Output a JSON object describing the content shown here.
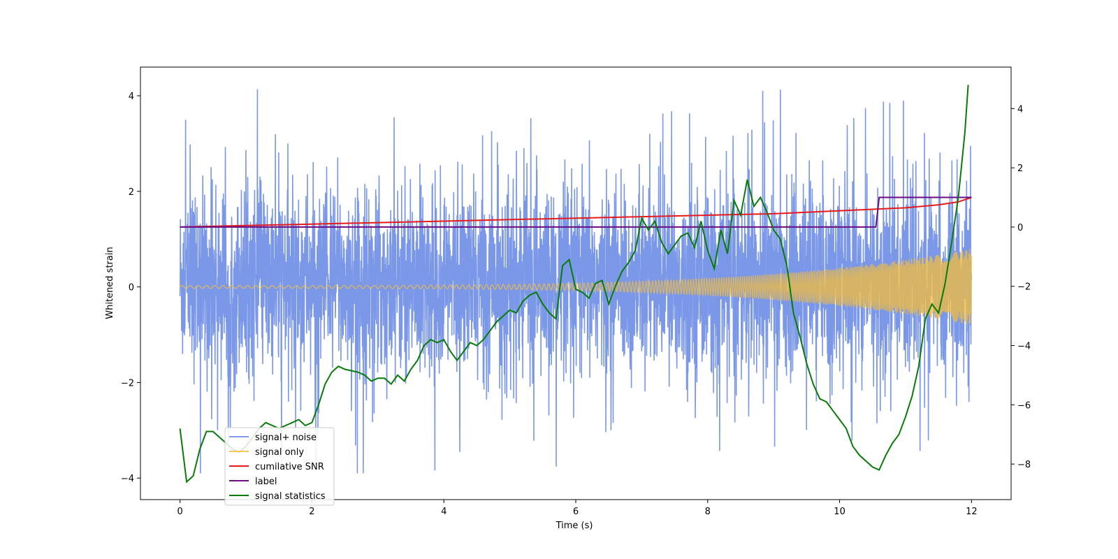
{
  "chart_data": {
    "type": "line",
    "title": "",
    "xlabel": "Time (s)",
    "ylabel": "Whitened strain",
    "y2label": "",
    "xlim": [
      -0.6,
      12.6
    ],
    "ylim": [
      -4.45,
      4.6
    ],
    "y2lim": [
      -9.2,
      5.4
    ],
    "x_ticks": [
      0,
      2,
      4,
      6,
      8,
      10,
      12
    ],
    "y_ticks": [
      -4,
      -2,
      0,
      2,
      4
    ],
    "y2_ticks": [
      -8,
      -6,
      -4,
      -2,
      0,
      2,
      4
    ],
    "grid": false,
    "legend_position": "lower-left",
    "series": [
      {
        "name": "signal+ noise",
        "axis": "left",
        "color": "#6b8ce6",
        "kind": "dense-noise",
        "x_range": [
          0,
          12
        ],
        "typical_range": [
          -2.0,
          2.2
        ],
        "extremes": [
          -3.9,
          4.2
        ]
      },
      {
        "name": "signal only",
        "axis": "left",
        "color": "#f5be3c",
        "kind": "chirp",
        "x_range": [
          0,
          12
        ],
        "amplitude_start": 0.03,
        "amplitude_end": 0.8
      },
      {
        "name": "cumilative SNR",
        "axis": "right",
        "color": "#e41a1c",
        "x": [
          0,
          1,
          2,
          3,
          4,
          5,
          6,
          7,
          8,
          9,
          10,
          10.5,
          11,
          11.5,
          11.8,
          12
        ],
        "values": [
          0.0,
          0.05,
          0.1,
          0.15,
          0.2,
          0.25,
          0.3,
          0.35,
          0.4,
          0.45,
          0.55,
          0.6,
          0.65,
          0.75,
          0.85,
          1.0
        ]
      },
      {
        "name": "label",
        "axis": "right",
        "color": "#6a0d83",
        "x": [
          0,
          10.55,
          10.6,
          12
        ],
        "values": [
          0,
          0,
          1,
          1
        ]
      },
      {
        "name": "signal statistics",
        "axis": "right",
        "color": "#0a7a0a",
        "x": [
          0,
          0.1,
          0.2,
          0.3,
          0.4,
          0.5,
          0.6,
          0.7,
          0.8,
          0.9,
          1.0,
          1.1,
          1.2,
          1.3,
          1.4,
          1.5,
          1.6,
          1.7,
          1.8,
          1.9,
          2.0,
          2.1,
          2.2,
          2.3,
          2.4,
          2.5,
          2.6,
          2.7,
          2.8,
          2.9,
          3.0,
          3.1,
          3.2,
          3.3,
          3.4,
          3.5,
          3.6,
          3.7,
          3.8,
          3.9,
          4.0,
          4.1,
          4.2,
          4.3,
          4.4,
          4.5,
          4.6,
          4.7,
          4.8,
          4.9,
          5.0,
          5.1,
          5.2,
          5.3,
          5.4,
          5.5,
          5.6,
          5.7,
          5.8,
          5.9,
          6.0,
          6.1,
          6.2,
          6.3,
          6.4,
          6.5,
          6.6,
          6.7,
          6.8,
          6.9,
          7.0,
          7.1,
          7.2,
          7.3,
          7.4,
          7.5,
          7.6,
          7.7,
          7.8,
          7.9,
          8.0,
          8.1,
          8.2,
          8.3,
          8.4,
          8.5,
          8.6,
          8.7,
          8.8,
          8.9,
          9.0,
          9.1,
          9.2,
          9.3,
          9.4,
          9.5,
          9.6,
          9.7,
          9.8,
          9.9,
          10.0,
          10.1,
          10.2,
          10.3,
          10.4,
          10.5,
          10.6,
          10.7,
          10.8,
          10.9,
          11.0,
          11.1,
          11.2,
          11.3,
          11.4,
          11.5,
          11.6,
          11.7,
          11.8,
          11.9,
          11.95
        ],
        "values": [
          -6.8,
          -8.6,
          -8.4,
          -7.5,
          -6.9,
          -6.9,
          -7.1,
          -7.3,
          -7.5,
          -7.6,
          -7.4,
          -7.1,
          -6.8,
          -6.6,
          -6.7,
          -6.8,
          -6.7,
          -6.6,
          -6.5,
          -6.7,
          -6.6,
          -6.0,
          -5.3,
          -4.9,
          -4.7,
          -4.8,
          -4.85,
          -4.9,
          -5.0,
          -5.2,
          -5.1,
          -5.1,
          -5.3,
          -5.0,
          -5.2,
          -4.8,
          -4.5,
          -4.0,
          -3.8,
          -3.9,
          -3.8,
          -4.2,
          -4.5,
          -4.2,
          -3.9,
          -4.0,
          -3.8,
          -3.5,
          -3.2,
          -3.0,
          -2.8,
          -2.9,
          -2.5,
          -2.3,
          -2.2,
          -2.6,
          -2.9,
          -3.1,
          -1.3,
          -1.1,
          -2.1,
          -2.2,
          -2.4,
          -1.9,
          -1.8,
          -2.6,
          -2.0,
          -1.5,
          -1.2,
          -0.8,
          0.3,
          -0.1,
          0.2,
          -0.5,
          -0.9,
          -0.6,
          -0.3,
          -0.2,
          -0.7,
          0.2,
          -0.8,
          -1.4,
          -0.1,
          -0.9,
          0.9,
          0.4,
          1.6,
          0.7,
          1.0,
          0.5,
          -0.1,
          -0.4,
          -1.3,
          -2.9,
          -3.7,
          -4.6,
          -5.3,
          -5.8,
          -5.9,
          -6.2,
          -6.5,
          -6.8,
          -7.4,
          -7.7,
          -7.9,
          -8.1,
          -8.2,
          -7.7,
          -7.3,
          -7.0,
          -6.4,
          -5.7,
          -4.7,
          -3.1,
          -2.6,
          -2.9,
          -1.9,
          -0.5,
          1.0,
          3.2,
          4.8
        ]
      }
    ]
  }
}
